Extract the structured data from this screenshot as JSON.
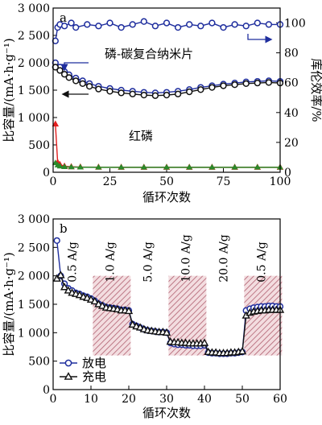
{
  "chart_data": [
    {
      "panel_label": "a",
      "type": "scatter",
      "xlabel": "循环次数",
      "ylabel_left": "比容量/(mA·h·g⁻¹)",
      "ylabel_right": "库伦效率/%",
      "xlim": [
        0,
        100
      ],
      "ylim_left": [
        0,
        3000
      ],
      "ylim_right": [
        0,
        110
      ],
      "xticks": [
        "0",
        "25",
        "50",
        "75",
        "100"
      ],
      "yticks_left": [
        "0",
        "500",
        "1 000",
        "1 500",
        "2 000",
        "2 500",
        "3 000"
      ],
      "yticks_right": [
        "0",
        "20",
        "40",
        "60",
        "80",
        "100"
      ],
      "annotations": {
        "composite": "磷-碳复合纳米片",
        "red_p": "红磷"
      },
      "colors": {
        "discharge": "#1f2e9e",
        "charge": "#111111",
        "red_p_discharge": "#e32020",
        "red_p_charge": "#2a8a2a",
        "efficiency": "#1f2e9e"
      },
      "series": [
        {
          "name": "磷-碳复合纳米片 放电",
          "axis": "left",
          "x": [
            1,
            3,
            5,
            7,
            10,
            13,
            16,
            20,
            25,
            30,
            35,
            40,
            45,
            50,
            55,
            60,
            65,
            70,
            75,
            80,
            85,
            90,
            95,
            100
          ],
          "y": [
            2000,
            1920,
            1840,
            1780,
            1720,
            1670,
            1620,
            1570,
            1530,
            1500,
            1480,
            1460,
            1450,
            1460,
            1480,
            1510,
            1550,
            1580,
            1610,
            1630,
            1650,
            1660,
            1670,
            1660
          ]
        },
        {
          "name": "磷-碳复合纳米片 充电",
          "axis": "left",
          "x": [
            1,
            3,
            5,
            7,
            10,
            13,
            16,
            20,
            25,
            30,
            35,
            40,
            45,
            50,
            55,
            60,
            65,
            70,
            75,
            80,
            85,
            90,
            95,
            100
          ],
          "y": [
            1920,
            1860,
            1790,
            1730,
            1670,
            1620,
            1570,
            1520,
            1480,
            1450,
            1430,
            1410,
            1400,
            1410,
            1430,
            1470,
            1510,
            1550,
            1580,
            1600,
            1620,
            1630,
            1640,
            1630
          ]
        },
        {
          "name": "红磷 放电",
          "axis": "left",
          "x": [
            1,
            2,
            3,
            5,
            8,
            12,
            20,
            30,
            40,
            50,
            60,
            70,
            80,
            90,
            100
          ],
          "y": [
            880,
            180,
            140,
            110,
            100,
            95,
            92,
            90,
            90,
            90,
            90,
            90,
            90,
            90,
            90
          ]
        },
        {
          "name": "红磷 充电",
          "axis": "left",
          "x": [
            1,
            2,
            3,
            5,
            8,
            12,
            20,
            30,
            40,
            50,
            60,
            70,
            80,
            90,
            100
          ],
          "y": [
            170,
            130,
            110,
            100,
            95,
            92,
            90,
            90,
            90,
            90,
            90,
            90,
            90,
            90,
            90
          ]
        },
        {
          "name": "库伦效率",
          "axis": "right",
          "x": [
            1,
            2,
            3,
            5,
            8,
            10,
            15,
            20,
            25,
            30,
            35,
            40,
            45,
            50,
            55,
            60,
            65,
            70,
            75,
            80,
            85,
            90,
            95,
            100
          ],
          "y": [
            88,
            97,
            99,
            98,
            100,
            97,
            99,
            98,
            100,
            97,
            99,
            101,
            98,
            100,
            97,
            99,
            98,
            100,
            97,
            99,
            98,
            100,
            99,
            99
          ]
        }
      ]
    },
    {
      "panel_label": "b",
      "type": "scatter",
      "xlabel": "循环次数",
      "ylabel": "比容量/(mA·h·g⁻¹)",
      "xlim": [
        0,
        60
      ],
      "ylim": [
        0,
        3000
      ],
      "xticks": [
        "0",
        "10",
        "20",
        "30",
        "40",
        "50",
        "60"
      ],
      "yticks": [
        "0",
        "500",
        "1 000",
        "1 500",
        "2 000",
        "2 500",
        "3 000"
      ],
      "rate_labels": [
        "0.5 A/g",
        "1.0 A/g",
        "5.0 A/g",
        "10.0 A/g",
        "20.0 A/g",
        "0.5 A/g"
      ],
      "legend": [
        "放电",
        "充电"
      ],
      "legend_position": "bottom-left",
      "colors": {
        "discharge": "#1f2e9e",
        "charge": "#111111",
        "band": "#b06070"
      },
      "series": [
        {
          "name": "放电",
          "x": [
            1,
            2,
            3,
            4,
            5,
            6,
            7,
            8,
            9,
            10,
            11,
            12,
            13,
            14,
            15,
            16,
            17,
            18,
            19,
            20,
            21,
            22,
            23,
            24,
            25,
            26,
            27,
            28,
            29,
            30,
            31,
            32,
            33,
            34,
            35,
            36,
            37,
            38,
            39,
            40,
            41,
            42,
            43,
            44,
            45,
            46,
            47,
            48,
            49,
            50,
            51,
            52,
            53,
            54,
            55,
            56,
            57,
            58,
            59,
            60
          ],
          "y": [
            2620,
            2000,
            1860,
            1780,
            1740,
            1700,
            1680,
            1650,
            1630,
            1600,
            1560,
            1510,
            1480,
            1450,
            1440,
            1430,
            1420,
            1400,
            1400,
            1390,
            1150,
            1120,
            1090,
            1060,
            1040,
            1030,
            1020,
            1010,
            1010,
            1000,
            820,
            800,
            790,
            790,
            780,
            780,
            770,
            770,
            770,
            780,
            650,
            640,
            640,
            630,
            630,
            630,
            640,
            640,
            650,
            660,
            1390,
            1420,
            1440,
            1450,
            1460,
            1460,
            1470,
            1470,
            1460,
            1460
          ]
        },
        {
          "name": "充电",
          "x": [
            1,
            2,
            3,
            4,
            5,
            6,
            7,
            8,
            9,
            10,
            11,
            12,
            13,
            14,
            15,
            16,
            17,
            18,
            19,
            20,
            21,
            22,
            23,
            24,
            25,
            26,
            27,
            28,
            29,
            30,
            31,
            32,
            33,
            34,
            35,
            36,
            37,
            38,
            39,
            40,
            41,
            42,
            43,
            44,
            45,
            46,
            47,
            48,
            49,
            50,
            51,
            52,
            53,
            54,
            55,
            56,
            57,
            58,
            59,
            60
          ],
          "y": [
            1950,
            2010,
            1800,
            1740,
            1700,
            1680,
            1660,
            1630,
            1610,
            1580,
            1550,
            1500,
            1470,
            1440,
            1430,
            1420,
            1410,
            1390,
            1390,
            1380,
            1140,
            1110,
            1090,
            1060,
            1040,
            1030,
            1020,
            1010,
            1010,
            1000,
            840,
            830,
            830,
            820,
            820,
            810,
            810,
            810,
            810,
            820,
            660,
            650,
            650,
            640,
            640,
            640,
            650,
            650,
            660,
            670,
            1300,
            1350,
            1370,
            1380,
            1390,
            1390,
            1400,
            1400,
            1400,
            1400
          ]
        }
      ]
    }
  ]
}
